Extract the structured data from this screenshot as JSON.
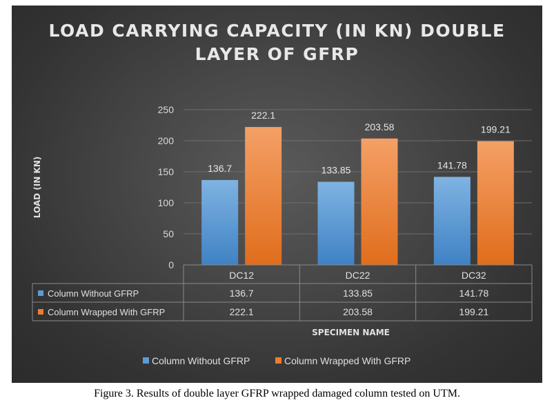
{
  "chart_data": {
    "type": "bar",
    "title_lines": [
      "LOAD CARRYING CAPACITY (IN KN) DOUBLE",
      "LAYER OF GFRP"
    ],
    "ylabel": "LOAD (IN KN)",
    "xlabel": "SPECIMEN NAME",
    "ylim": [
      0,
      250
    ],
    "yticks": [
      0,
      50,
      100,
      150,
      200,
      250
    ],
    "categories": [
      "DC12",
      "DC22",
      "DC32"
    ],
    "series": [
      {
        "name": "Column Without GFRP",
        "values": [
          136.7,
          133.85,
          141.78
        ],
        "color": "#5b9bd5",
        "labels": [
          "136.7",
          "133.85",
          "141.78"
        ]
      },
      {
        "name": "Column Wrapped With GFRP",
        "values": [
          222.1,
          203.58,
          199.21
        ],
        "color": "#ed7d31",
        "labels": [
          "222.1",
          "203.58",
          "199.21"
        ]
      }
    ],
    "grid": true,
    "data_table": true,
    "legend_position": "bottom"
  },
  "caption": "Figure 3. Results of double layer GFRP wrapped damaged column tested on UTM."
}
